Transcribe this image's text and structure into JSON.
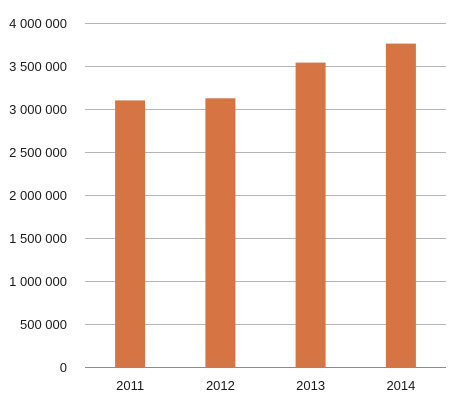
{
  "chart_data": {
    "type": "bar",
    "categories": [
      "2011",
      "2012",
      "2013",
      "2014"
    ],
    "values": [
      3100000,
      3125000,
      3540000,
      3760000
    ],
    "ylim": [
      0,
      4000000
    ],
    "yticks": [
      0,
      500000,
      1000000,
      1500000,
      2000000,
      2500000,
      3000000,
      3500000,
      4000000
    ],
    "ytick_labels": [
      "0",
      "500 000",
      "1 000 000",
      "1 500 000",
      "2 000 000",
      "2 500 000",
      "3 000 000",
      "3 500 000",
      "4 000 000"
    ],
    "title": "",
    "xlabel": "",
    "ylabel": "",
    "grid": true,
    "legend": "none",
    "bar_color": "#d67443",
    "grid_color": "#b5b5b5"
  }
}
